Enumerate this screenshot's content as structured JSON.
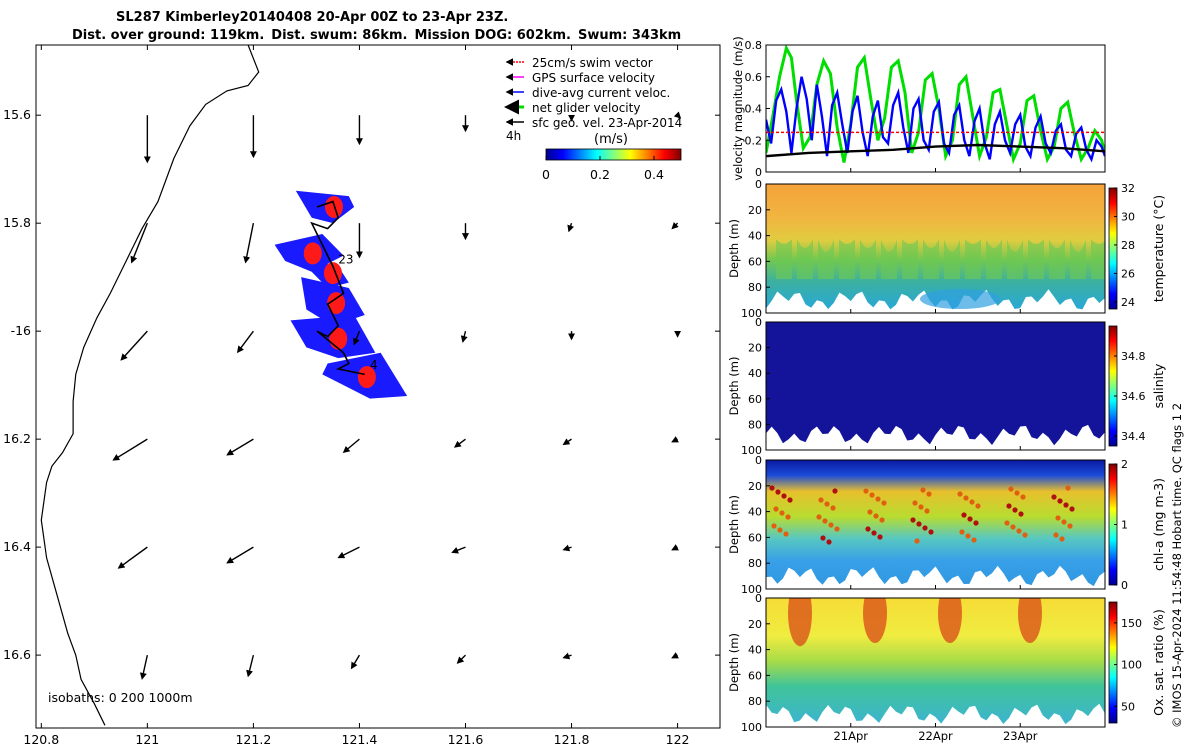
{
  "title": {
    "line1": "SL287 Kimberley20140408 20-Apr 00Z to 23-Apr 23Z.",
    "line2": [
      "Dist. over ground: 119km.",
      "Dist. swum: 86km.",
      "Mission DOG: 602km.",
      "Swum: 343km"
    ]
  },
  "map": {
    "x_ticks": [
      120.8,
      121,
      121.2,
      121.4,
      121.6,
      121.8,
      122
    ],
    "y_ticks": [
      -15.6,
      -15.8,
      -16,
      -16.2,
      -16.4,
      -16.6
    ],
    "y_tick_labels": [
      "15.6",
      "15.8",
      "-16",
      "16.2",
      "16.4",
      "16.6"
    ],
    "xlim": [
      120.79,
      122.08
    ],
    "ylim": [
      -16.735,
      -15.47
    ],
    "isobaths": "isobaths: 0   200  1000m",
    "label_4h": "4h",
    "track_labels": [
      "23",
      "4"
    ],
    "legend": [
      {
        "label": "25cm/s swim vector",
        "color": "#ff0000"
      },
      {
        "label": "GPS surface velocity",
        "color": "#ff00ff"
      },
      {
        "label": "dive-avg current veloc.",
        "color": "#0000ff"
      },
      {
        "label": "net glider velocity",
        "color": "#00dd00"
      },
      {
        "label": "sfc geo. vel. 23-Apr-2014",
        "color": "#000000"
      }
    ],
    "colorbar": {
      "label": "(m/s)",
      "ticks": [
        0,
        0.2,
        0.4
      ],
      "range": [
        0,
        0.5
      ]
    },
    "coastline": [
      [
        121.19,
        -15.47
      ],
      [
        121.21,
        -15.52
      ],
      [
        121.19,
        -15.545
      ],
      [
        121.15,
        -15.555
      ],
      [
        121.11,
        -15.58
      ],
      [
        121.08,
        -15.62
      ],
      [
        121.05,
        -15.68
      ],
      [
        121.02,
        -15.76
      ],
      [
        120.99,
        -15.81
      ],
      [
        120.96,
        -15.87
      ],
      [
        120.93,
        -15.93
      ],
      [
        120.905,
        -15.975
      ],
      [
        120.88,
        -16.03
      ],
      [
        120.865,
        -16.08
      ],
      [
        120.86,
        -16.13
      ],
      [
        120.86,
        -16.19
      ],
      [
        120.84,
        -16.225
      ],
      [
        120.82,
        -16.25
      ],
      [
        120.81,
        -16.28
      ],
      [
        120.8,
        -16.35
      ],
      [
        120.81,
        -16.42
      ],
      [
        120.83,
        -16.49
      ],
      [
        120.85,
        -16.56
      ],
      [
        120.865,
        -16.6
      ],
      [
        120.875,
        -16.645
      ],
      [
        120.9,
        -16.69
      ],
      [
        120.92,
        -16.73
      ]
    ],
    "current_arrows": [
      {
        "lon": 121,
        "lat": -15.6,
        "u": 0,
        "v": -0.18
      },
      {
        "lon": 121.2,
        "lat": -15.6,
        "u": 0,
        "v": -0.16
      },
      {
        "lon": 121.4,
        "lat": -15.6,
        "u": 0,
        "v": -0.11
      },
      {
        "lon": 121.6,
        "lat": -15.6,
        "u": 0,
        "v": -0.06
      },
      {
        "lon": 121.8,
        "lat": -15.6,
        "u": 0,
        "v": -0.02
      },
      {
        "lon": 122,
        "lat": -15.6,
        "u": 0.01,
        "v": -0.01
      },
      {
        "lon": 121,
        "lat": -15.8,
        "u": -0.06,
        "v": -0.15
      },
      {
        "lon": 121.2,
        "lat": -15.8,
        "u": -0.03,
        "v": -0.15
      },
      {
        "lon": 121.4,
        "lat": -15.8,
        "u": 0,
        "v": -0.13
      },
      {
        "lon": 121.6,
        "lat": -15.8,
        "u": 0,
        "v": -0.06
      },
      {
        "lon": 121.8,
        "lat": -15.8,
        "u": -0.01,
        "v": -0.03
      },
      {
        "lon": 122,
        "lat": -15.8,
        "u": -0.02,
        "v": -0.02
      },
      {
        "lon": 121,
        "lat": -16,
        "u": -0.1,
        "v": -0.11
      },
      {
        "lon": 121.2,
        "lat": -16,
        "u": -0.06,
        "v": -0.08
      },
      {
        "lon": 121.4,
        "lat": -16,
        "u": -0.02,
        "v": -0.05
      },
      {
        "lon": 121.6,
        "lat": -16,
        "u": -0.01,
        "v": -0.04
      },
      {
        "lon": 121.8,
        "lat": -16,
        "u": 0,
        "v": -0.03
      },
      {
        "lon": 122,
        "lat": -16,
        "u": 0,
        "v": -0.02
      },
      {
        "lon": 121,
        "lat": -16.2,
        "u": -0.13,
        "v": -0.08
      },
      {
        "lon": 121.2,
        "lat": -16.2,
        "u": -0.1,
        "v": -0.06
      },
      {
        "lon": 121.4,
        "lat": -16.2,
        "u": -0.06,
        "v": -0.05
      },
      {
        "lon": 121.6,
        "lat": -16.2,
        "u": -0.04,
        "v": -0.03
      },
      {
        "lon": 121.8,
        "lat": -16.2,
        "u": -0.03,
        "v": -0.02
      },
      {
        "lon": 122,
        "lat": -16.2,
        "u": -0.02,
        "v": -0.01
      },
      {
        "lon": 121,
        "lat": -16.4,
        "u": -0.11,
        "v": -0.08
      },
      {
        "lon": 121.2,
        "lat": -16.4,
        "u": -0.1,
        "v": -0.06
      },
      {
        "lon": 121.4,
        "lat": -16.4,
        "u": -0.08,
        "v": -0.04
      },
      {
        "lon": 121.6,
        "lat": -16.4,
        "u": -0.05,
        "v": -0.02
      },
      {
        "lon": 121.8,
        "lat": -16.4,
        "u": -0.03,
        "v": -0.01
      },
      {
        "lon": 122,
        "lat": -16.4,
        "u": -0.02,
        "v": -0.01
      },
      {
        "lon": 121,
        "lat": -16.6,
        "u": -0.02,
        "v": -0.09
      },
      {
        "lon": 121.2,
        "lat": -16.6,
        "u": -0.02,
        "v": -0.08
      },
      {
        "lon": 121.4,
        "lat": -16.6,
        "u": -0.03,
        "v": -0.05
      },
      {
        "lon": 121.6,
        "lat": -16.6,
        "u": -0.03,
        "v": -0.03
      },
      {
        "lon": 121.8,
        "lat": -16.6,
        "u": -0.03,
        "v": -0.01
      },
      {
        "lon": 122,
        "lat": -16.6,
        "u": -0.02,
        "v": -0.01
      }
    ],
    "swim_patches": [
      [
        [
          121.28,
          -15.74
        ],
        [
          121.38,
          -15.75
        ],
        [
          121.39,
          -15.77
        ],
        [
          121.35,
          -15.8
        ],
        [
          121.31,
          -15.79
        ]
      ],
      [
        [
          121.24,
          -15.84
        ],
        [
          121.33,
          -15.82
        ],
        [
          121.37,
          -15.86
        ],
        [
          121.31,
          -15.89
        ],
        [
          121.26,
          -15.87
        ]
      ],
      [
        [
          121.28,
          -15.86
        ],
        [
          121.36,
          -15.88
        ],
        [
          121.38,
          -15.91
        ],
        [
          121.34,
          -15.92
        ]
      ],
      [
        [
          121.29,
          -15.9
        ],
        [
          121.38,
          -15.92
        ],
        [
          121.41,
          -15.97
        ],
        [
          121.35,
          -15.99
        ],
        [
          121.3,
          -15.96
        ]
      ],
      [
        [
          121.27,
          -15.98
        ],
        [
          121.39,
          -15.97
        ],
        [
          121.43,
          -16.04
        ],
        [
          121.36,
          -16.05
        ],
        [
          121.3,
          -16.03
        ]
      ],
      [
        [
          121.34,
          -16.06
        ],
        [
          121.44,
          -16.04
        ],
        [
          121.49,
          -16.12
        ],
        [
          121.42,
          -16.125
        ],
        [
          121.33,
          -16.08
        ]
      ]
    ],
    "glider_track": [
      [
        121.32,
        -15.77
      ],
      [
        121.35,
        -15.76
      ],
      [
        121.36,
        -15.79
      ],
      [
        121.34,
        -15.81
      ],
      [
        121.31,
        -15.8
      ],
      [
        121.33,
        -15.84
      ],
      [
        121.35,
        -15.88
      ],
      [
        121.37,
        -15.93
      ],
      [
        121.34,
        -15.95
      ],
      [
        121.36,
        -15.99
      ],
      [
        121.34,
        -16.01
      ],
      [
        121.32,
        -16.0
      ],
      [
        121.37,
        -16.04
      ],
      [
        121.38,
        -16.06
      ],
      [
        121.36,
        -16.07
      ],
      [
        121.41,
        -16.08
      ]
    ]
  },
  "chart_data": [
    {
      "type": "line",
      "ylabel": "velocity magnitude (m/s)",
      "ylim": [
        0,
        0.8
      ],
      "y_ticks": [
        0,
        0.2,
        0.4,
        0.6,
        0.8
      ],
      "xlim": [
        20.0,
        24.0
      ],
      "series": [
        {
          "name": "net glider velocity",
          "color": "#00dd00",
          "x": [
            20.0,
            20.08,
            20.16,
            20.24,
            20.3,
            20.36,
            20.44,
            20.52,
            20.6,
            20.68,
            20.76,
            20.84,
            20.92,
            21.0,
            21.08,
            21.16,
            21.24,
            21.32,
            21.4,
            21.48,
            21.56,
            21.64,
            21.72,
            21.8,
            21.88,
            21.96,
            22.04,
            22.12,
            22.2,
            22.28,
            22.36,
            22.44,
            22.52,
            22.6,
            22.68,
            22.76,
            22.84,
            22.92,
            23.0,
            23.08,
            23.16,
            23.24,
            23.32,
            23.4,
            23.48,
            23.56,
            23.64,
            23.72,
            23.8,
            23.88,
            23.96,
            24.0
          ],
          "y": [
            0.12,
            0.35,
            0.6,
            0.78,
            0.72,
            0.45,
            0.15,
            0.22,
            0.55,
            0.7,
            0.62,
            0.28,
            0.06,
            0.3,
            0.66,
            0.72,
            0.45,
            0.2,
            0.34,
            0.66,
            0.7,
            0.5,
            0.12,
            0.25,
            0.58,
            0.62,
            0.4,
            0.1,
            0.2,
            0.55,
            0.6,
            0.35,
            0.1,
            0.22,
            0.5,
            0.52,
            0.3,
            0.08,
            0.18,
            0.45,
            0.48,
            0.26,
            0.08,
            0.16,
            0.4,
            0.44,
            0.24,
            0.08,
            0.15,
            0.26,
            0.2,
            0.12
          ]
        },
        {
          "name": "dive-avg current veloc.",
          "color": "#0000ff",
          "x": [
            20.0,
            20.06,
            20.12,
            20.18,
            20.24,
            20.3,
            20.36,
            20.42,
            20.48,
            20.54,
            20.6,
            20.66,
            20.72,
            20.78,
            20.84,
            20.9,
            20.96,
            21.02,
            21.08,
            21.14,
            21.2,
            21.26,
            21.32,
            21.38,
            21.44,
            21.5,
            21.56,
            21.62,
            21.68,
            21.74,
            21.8,
            21.86,
            21.92,
            21.98,
            22.04,
            22.1,
            22.16,
            22.22,
            22.28,
            22.34,
            22.4,
            22.46,
            22.52,
            22.58,
            22.64,
            22.7,
            22.76,
            22.82,
            22.88,
            22.94,
            23.0,
            23.06,
            23.12,
            23.18,
            23.24,
            23.3,
            23.36,
            23.42,
            23.48,
            23.54,
            23.6,
            23.66,
            23.72,
            23.78,
            23.84,
            23.9,
            23.96,
            24.0
          ],
          "y": [
            0.33,
            0.18,
            0.45,
            0.52,
            0.38,
            0.12,
            0.4,
            0.6,
            0.46,
            0.2,
            0.55,
            0.35,
            0.1,
            0.42,
            0.5,
            0.3,
            0.12,
            0.38,
            0.48,
            0.25,
            0.1,
            0.35,
            0.45,
            0.22,
            0.18,
            0.42,
            0.5,
            0.28,
            0.12,
            0.4,
            0.46,
            0.2,
            0.14,
            0.38,
            0.44,
            0.18,
            0.12,
            0.36,
            0.42,
            0.2,
            0.1,
            0.32,
            0.4,
            0.18,
            0.08,
            0.3,
            0.38,
            0.2,
            0.12,
            0.3,
            0.36,
            0.16,
            0.1,
            0.28,
            0.35,
            0.18,
            0.12,
            0.26,
            0.3,
            0.14,
            0.1,
            0.24,
            0.28,
            0.14,
            0.08,
            0.2,
            0.16,
            0.1
          ]
        },
        {
          "name": "25cm/s swim vector",
          "color": "#ff0000",
          "x": [
            20.0,
            24.0
          ],
          "y": [
            0.25,
            0.25
          ]
        },
        {
          "name": "sfc geo. vel.",
          "color": "#000000",
          "x": [
            20.0,
            20.5,
            21.0,
            21.5,
            22.0,
            22.5,
            23.0,
            23.5,
            24.0
          ],
          "y": [
            0.1,
            0.12,
            0.13,
            0.14,
            0.16,
            0.17,
            0.16,
            0.15,
            0.13
          ]
        }
      ]
    },
    {
      "type": "heatmap",
      "variable": "temperature",
      "colorbar_label": "temperature (°C)",
      "ylabel": "Depth (m)",
      "ylim": [
        100,
        0
      ],
      "y_ticks": [
        0,
        20,
        40,
        60,
        80,
        100
      ],
      "clim": [
        23.5,
        32
      ],
      "cbar_ticks": [
        24,
        26,
        28,
        30,
        32
      ]
    },
    {
      "type": "heatmap",
      "variable": "salinity",
      "colorbar_label": "salinity",
      "ylabel": "Depth (m)",
      "ylim": [
        100,
        0
      ],
      "y_ticks": [
        0,
        20,
        40,
        60,
        80,
        100
      ],
      "clim": [
        34.35,
        34.95
      ],
      "cbar_ticks": [
        34.4,
        34.6,
        34.8
      ]
    },
    {
      "type": "heatmap",
      "variable": "chlorophyll",
      "colorbar_label": "chl-a (mg m-3)",
      "ylabel": "Depth (m)",
      "ylim": [
        100,
        0
      ],
      "y_ticks": [
        0,
        20,
        40,
        60,
        80,
        100
      ],
      "clim": [
        0,
        2
      ],
      "cbar_ticks": [
        0,
        1,
        2
      ]
    },
    {
      "type": "heatmap",
      "variable": "oxygen",
      "colorbar_label": "Ox. sat. ratio (%)",
      "ylabel": "Depth (m)",
      "ylim": [
        100,
        0
      ],
      "y_ticks": [
        0,
        20,
        40,
        60,
        80,
        100
      ],
      "clim": [
        30,
        175
      ],
      "cbar_ticks": [
        50,
        100,
        150
      ]
    }
  ],
  "time_axis": {
    "labels": [
      "21Apr",
      "22Apr",
      "23Apr"
    ],
    "ticks": [
      21.0,
      22.0,
      23.0
    ],
    "xlim": [
      20.0,
      24.0
    ]
  },
  "copyright": "© IMOS 15-Apr-2024 11:54:48 Hobart time. QC flags 1  2"
}
